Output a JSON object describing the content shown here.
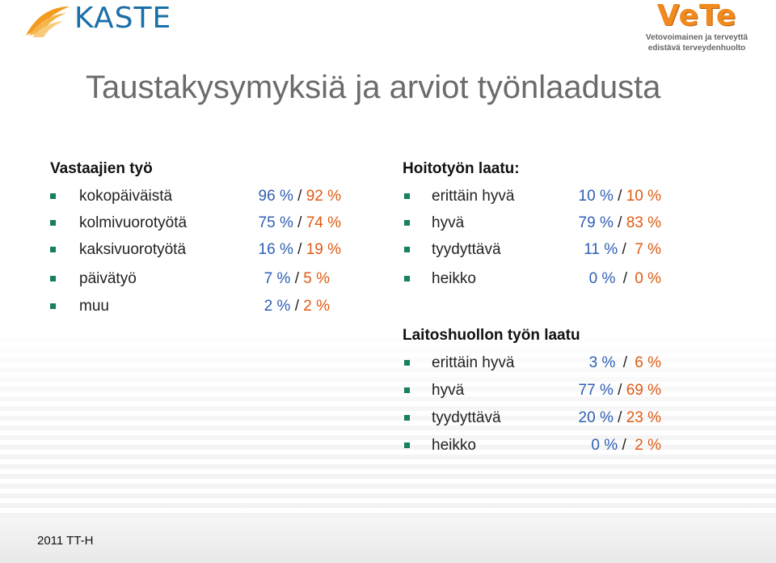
{
  "header": {
    "kaste_logo_text": "KASTE",
    "vete_logo": {
      "title": "VeTe",
      "subtitle_line1": "Vetovoimainen ja terveyttä",
      "subtitle_line2": "edistävä terveydenhuolto"
    }
  },
  "title": "Taustakysymyksiä ja arviot työnlaadusta",
  "colors": {
    "bullet": "#16805f",
    "value_first": "#2e5fb4",
    "value_second": "#e05a12",
    "title": "#6b6b6b",
    "kaste": "#1b6fa8",
    "vete": "#f08a1c"
  },
  "left_section": {
    "heading": "Vastaajien työ",
    "items": [
      {
        "label": "kokopäiväistä",
        "value1": "96 %",
        "separator": "/",
        "value2": "92 %"
      },
      {
        "label": "kolmivuorotyötä",
        "value1": "75 %",
        "separator": "/",
        "value2": "74 %"
      },
      {
        "label": "kaksivuorotyötä",
        "value1": "16 %",
        "separator": "/",
        "value2": "19 %"
      },
      {
        "label": "päivätyö",
        "value1": "7 %",
        "separator": "/",
        "value2": "5 %"
      },
      {
        "label": "muu",
        "value1": "2 %",
        "separator": "/",
        "value2": "2 %"
      }
    ]
  },
  "right_section_1": {
    "heading": "Hoitotyön laatu:",
    "items": [
      {
        "label": "erittäin hyvä",
        "value1": "10 %",
        "separator": "/",
        "value2": "10 %"
      },
      {
        "label": "hyvä",
        "value1": "79 %",
        "separator": "/",
        "value2": "83 %"
      },
      {
        "label": "tyydyttävä",
        "value1": "11 %",
        "separator": "/",
        "value2": "7 %"
      },
      {
        "label": "heikko",
        "value1": "0 %",
        "separator": "/",
        "value2": "0 %"
      }
    ]
  },
  "right_section_2": {
    "heading": "Laitoshuollon työn laatu",
    "items": [
      {
        "label": "erittäin hyvä",
        "value1": "3 %",
        "separator": "/",
        "value2": "6 %"
      },
      {
        "label": "hyvä",
        "value1": "77 %",
        "separator": "/",
        "value2": "69 %"
      },
      {
        "label": "tyydyttävä",
        "value1": "20 %",
        "separator": "/",
        "value2": "23 %"
      },
      {
        "label": "heikko",
        "value1": "0 %",
        "separator": "/",
        "value2": "2 %"
      }
    ]
  },
  "footer": "2011 TT-H"
}
